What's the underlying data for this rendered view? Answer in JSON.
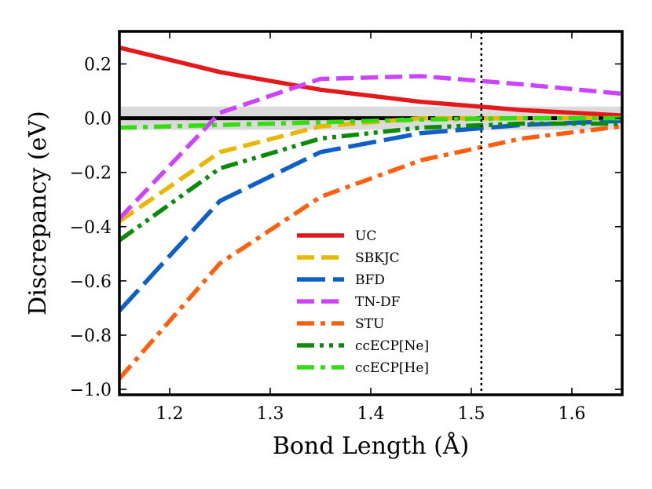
{
  "chart_data": {
    "type": "line",
    "xlabel": "Bond Length (Å)",
    "ylabel": "Discrepancy (eV)",
    "xlim": [
      1.15,
      1.65
    ],
    "ylim": [
      -1.02,
      0.32
    ],
    "xticks": [
      1.2,
      1.3,
      1.4,
      1.5,
      1.6
    ],
    "xtick_labels": [
      "1.2",
      "1.3",
      "1.4",
      "1.5",
      "1.6"
    ],
    "yticks": [
      0.2,
      0.0,
      -0.2,
      -0.4,
      -0.6,
      -0.8,
      -1.0
    ],
    "ytick_labels": [
      "0.2",
      "0.0",
      "−0.2",
      "−0.4",
      "−0.6",
      "−0.8",
      "−1.0"
    ],
    "reference_line_y": 0.0,
    "shaded_band": [
      -0.043,
      0.043
    ],
    "vertical_marker_x": 1.51,
    "legend_position": "center",
    "series": [
      {
        "name": "UC",
        "color": "#e31a1c",
        "dash": "solid",
        "x": [
          1.15,
          1.25,
          1.35,
          1.45,
          1.55,
          1.65
        ],
        "y": [
          0.26,
          0.17,
          0.105,
          0.06,
          0.03,
          0.01
        ]
      },
      {
        "name": "SBKJC",
        "color": "#e8b800",
        "dash": "dash",
        "x": [
          1.15,
          1.25,
          1.35,
          1.45,
          1.55,
          1.65
        ],
        "y": [
          -0.38,
          -0.125,
          -0.03,
          0.0,
          0.0,
          0.0
        ]
      },
      {
        "name": "BFD",
        "color": "#0f5fc8",
        "dash": "longdash",
        "x": [
          1.15,
          1.25,
          1.35,
          1.45,
          1.55,
          1.65
        ],
        "y": [
          -0.71,
          -0.305,
          -0.125,
          -0.055,
          -0.025,
          -0.01
        ]
      },
      {
        "name": "TN-DF",
        "color": "#cc44ff",
        "dash": "dash",
        "x": [
          1.15,
          1.25,
          1.35,
          1.45,
          1.55,
          1.65
        ],
        "y": [
          -0.37,
          0.02,
          0.145,
          0.155,
          0.125,
          0.09
        ]
      },
      {
        "name": "STU",
        "color": "#ff5f0f",
        "dash": "dashdot",
        "x": [
          1.15,
          1.25,
          1.35,
          1.45,
          1.55,
          1.65
        ],
        "y": [
          -0.96,
          -0.535,
          -0.29,
          -0.155,
          -0.075,
          -0.03
        ]
      },
      {
        "name": "ccECP[Ne]",
        "color": "#0a8c0a",
        "dash": "dashdotdot",
        "x": [
          1.15,
          1.25,
          1.35,
          1.45,
          1.55,
          1.65
        ],
        "y": [
          -0.45,
          -0.185,
          -0.075,
          -0.035,
          -0.02,
          -0.02
        ]
      },
      {
        "name": "ccECP[He]",
        "color": "#33dd11",
        "dash": "dashdot",
        "x": [
          1.15,
          1.25,
          1.35,
          1.45,
          1.55,
          1.65
        ],
        "y": [
          -0.035,
          -0.025,
          -0.015,
          -0.005,
          0.0,
          0.0
        ]
      }
    ]
  }
}
